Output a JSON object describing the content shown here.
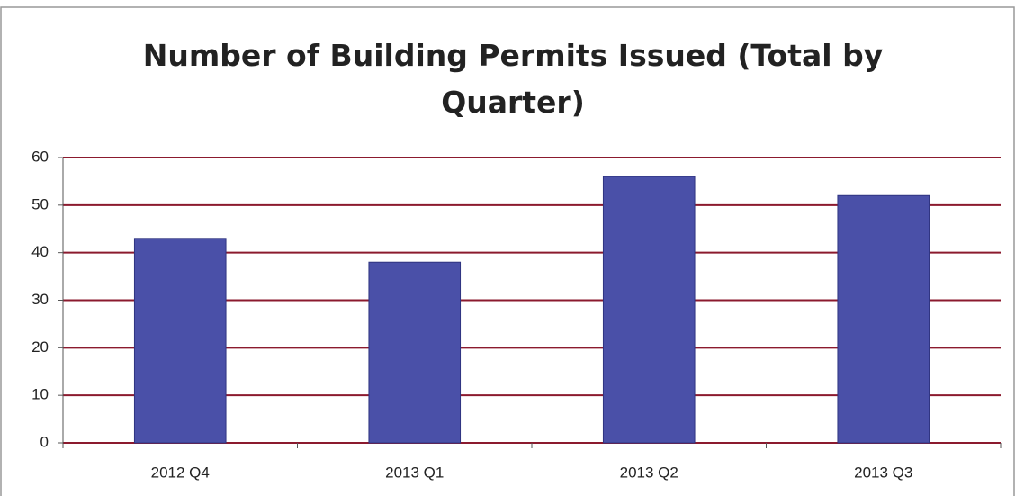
{
  "chart_data": {
    "type": "bar",
    "title": "Number of Building Permits Issued (Total by Quarter)",
    "categories": [
      "2012 Q4",
      "2013 Q1",
      "2013 Q2",
      "2013 Q3"
    ],
    "values": [
      43,
      38,
      56,
      52
    ],
    "color": "#4a50a8",
    "ylim": [
      0,
      60
    ],
    "yticks": [
      0,
      10,
      20,
      30,
      40,
      50,
      60
    ],
    "grid": true,
    "grid_color": "#8b1a2e"
  }
}
